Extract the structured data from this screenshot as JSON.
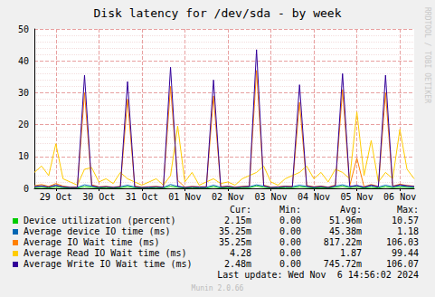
{
  "chart_data": {
    "type": "line",
    "title": "Disk latency for /dev/sda - by week",
    "categories": [
      null,
      null,
      null,
      "29 Oct",
      null,
      null,
      null,
      null,
      null,
      "30 Oct",
      null,
      null,
      null,
      null,
      null,
      "31 Oct",
      null,
      null,
      null,
      null,
      null,
      "01 Nov",
      null,
      null,
      null,
      null,
      null,
      "02 Nov",
      null,
      null,
      null,
      null,
      null,
      "03 Nov",
      null,
      null,
      null,
      null,
      null,
      "04 Nov",
      null,
      null,
      null,
      null,
      null,
      "05 Nov",
      null,
      null,
      null,
      null,
      null,
      "06 Nov",
      null,
      null
    ],
    "series": [
      {
        "name": "Device utilization (percent)",
        "color": "#00cc00",
        "values": [
          0.2,
          0.3,
          0.1,
          0.4,
          0.2,
          0.1,
          0.1,
          0.5,
          0.3,
          0.1,
          0.2,
          0.1,
          0.2,
          0.5,
          0.2,
          0.1,
          0.1,
          0.2,
          0.1,
          0.6,
          0.3,
          0.1,
          0.2,
          0.1,
          0.1,
          0.5,
          0.1,
          0.2,
          0.1,
          0.2,
          0.2,
          0.7,
          0.3,
          0.1,
          0.1,
          0.2,
          0.2,
          0.5,
          0.3,
          0.1,
          0.2,
          0.1,
          0.3,
          0.6,
          0.2,
          0.4,
          0.1,
          0.3,
          0.1,
          0.5,
          0.2,
          0.4,
          0.3,
          0.2
        ]
      },
      {
        "name": "Average device IO time (ms)",
        "color": "#0066b3",
        "values": [
          0.6,
          0.8,
          0.5,
          1.0,
          0.4,
          0.3,
          0.3,
          1.1,
          0.7,
          0.3,
          0.5,
          0.3,
          0.5,
          1.0,
          0.4,
          0.3,
          0.3,
          0.4,
          0.3,
          1.2,
          0.6,
          0.3,
          0.4,
          0.3,
          0.3,
          1.0,
          0.3,
          0.5,
          0.3,
          0.4,
          0.5,
          1.1,
          0.7,
          0.3,
          0.3,
          0.5,
          0.5,
          1.0,
          0.6,
          0.3,
          0.5,
          0.3,
          0.7,
          1.1,
          0.5,
          0.9,
          0.3,
          0.8,
          0.4,
          1.0,
          0.5,
          0.9,
          0.6,
          0.5
        ]
      },
      {
        "name": "Average IO Wait time (ms)",
        "color": "#ff8000",
        "values": [
          0.8,
          1.2,
          0.6,
          1.5,
          0.7,
          0.4,
          0.4,
          30,
          1.1,
          0.5,
          0.6,
          0.4,
          0.6,
          28,
          0.7,
          0.4,
          0.5,
          0.6,
          0.4,
          32,
          2.5,
          0.4,
          0.6,
          0.5,
          0.5,
          29,
          0.5,
          0.7,
          0.4,
          0.6,
          0.7,
          37,
          1.0,
          0.4,
          0.5,
          0.7,
          0.6,
          27,
          0.9,
          0.5,
          0.7,
          0.4,
          1.0,
          31,
          0.8,
          9.5,
          0.5,
          1.2,
          0.6,
          30,
          0.7,
          1.3,
          0.9,
          0.7
        ]
      },
      {
        "name": "Average Read IO Wait time (ms)",
        "color": "#ffcc00",
        "values": [
          5,
          7,
          4,
          14,
          3,
          2,
          1,
          6,
          6.5,
          2,
          3,
          1.5,
          5,
          3,
          2,
          1,
          2,
          3,
          1,
          4,
          19.5,
          2,
          5,
          1,
          2,
          3,
          1.5,
          2,
          1,
          3,
          4,
          5,
          7,
          2,
          1,
          3,
          4,
          5,
          7,
          3,
          5,
          2,
          6,
          5,
          3,
          24,
          4,
          15,
          2,
          5,
          3,
          18.5,
          6,
          3
        ]
      },
      {
        "name": "Average Write IO Wait time (ms)",
        "color": "#330099",
        "values": [
          0.5,
          0.7,
          0.4,
          0.9,
          0.5,
          0.3,
          0.3,
          35.5,
          0.8,
          0.4,
          0.5,
          0.3,
          0.5,
          33.5,
          0.5,
          0.3,
          0.4,
          0.5,
          0.3,
          38,
          0.6,
          0.3,
          0.5,
          0.4,
          0.4,
          34,
          0.4,
          0.6,
          0.3,
          0.5,
          0.6,
          43.5,
          0.8,
          0.3,
          0.4,
          0.6,
          0.5,
          32.5,
          0.7,
          0.4,
          0.6,
          0.3,
          0.8,
          36,
          0.6,
          0.9,
          0.4,
          1.0,
          0.5,
          35.5,
          0.6,
          1.1,
          0.8,
          0.6
        ]
      }
    ],
    "ylim": [
      0,
      50
    ],
    "yticks": [
      0,
      10,
      20,
      30,
      40,
      50
    ],
    "grid": true
  },
  "legend_table": {
    "header": [
      "Cur:",
      "Min:",
      "Avg:",
      "Max:"
    ],
    "rows": [
      [
        "2.15m",
        "0.00",
        "51.96m",
        "10.57"
      ],
      [
        "35.25m",
        "0.00",
        "45.38m",
        "1.18"
      ],
      [
        "35.25m",
        "0.00",
        "817.22m",
        "106.03"
      ],
      [
        "4.28",
        "0.00",
        "1.87",
        "99.44"
      ],
      [
        "2.48m",
        "0.00",
        "745.72m",
        "106.07"
      ]
    ]
  },
  "last_update": "Last update: Wed Nov  6 14:56:02 2024",
  "footer": "Munin 2.0.66",
  "watermark": "RRDTOOL / TOBI OETIKER"
}
